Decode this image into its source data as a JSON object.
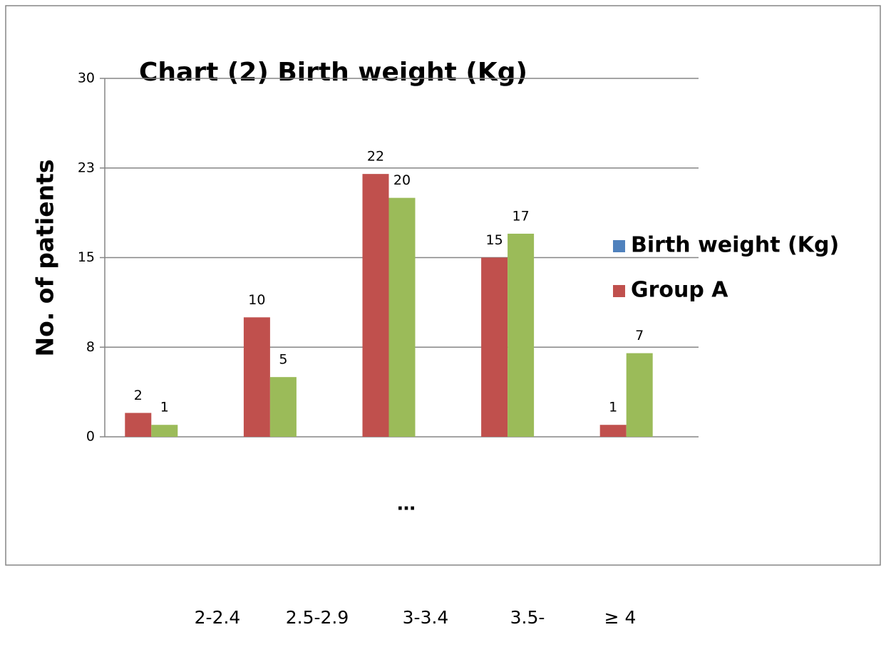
{
  "chart_data": {
    "type": "bar",
    "title": "Chart (2) Birth weight (Kg)",
    "y_label": "No. of patients",
    "x_label": "…",
    "categories": [
      "2-2.4",
      "2.5-2.9",
      "3-3.4",
      "3.5-",
      "≥ 4"
    ],
    "series": [
      {
        "name": "Birth weight (Kg)",
        "color": "#4f81bd",
        "values": [
          null,
          null,
          null,
          null,
          null
        ]
      },
      {
        "name": "Group A",
        "color": "#c0504d",
        "values": [
          2,
          10,
          22,
          15,
          1
        ]
      },
      {
        "color": "#9bbb59",
        "values": [
          1,
          5,
          20,
          17,
          7
        ]
      }
    ],
    "ylim": [
      0,
      30
    ],
    "yticks": [
      0,
      {
        "value": 7.5,
        "label": "8"
      },
      15,
      {
        "value": 22.5,
        "label": "23"
      },
      30
    ],
    "grid": true,
    "legend": "right"
  }
}
